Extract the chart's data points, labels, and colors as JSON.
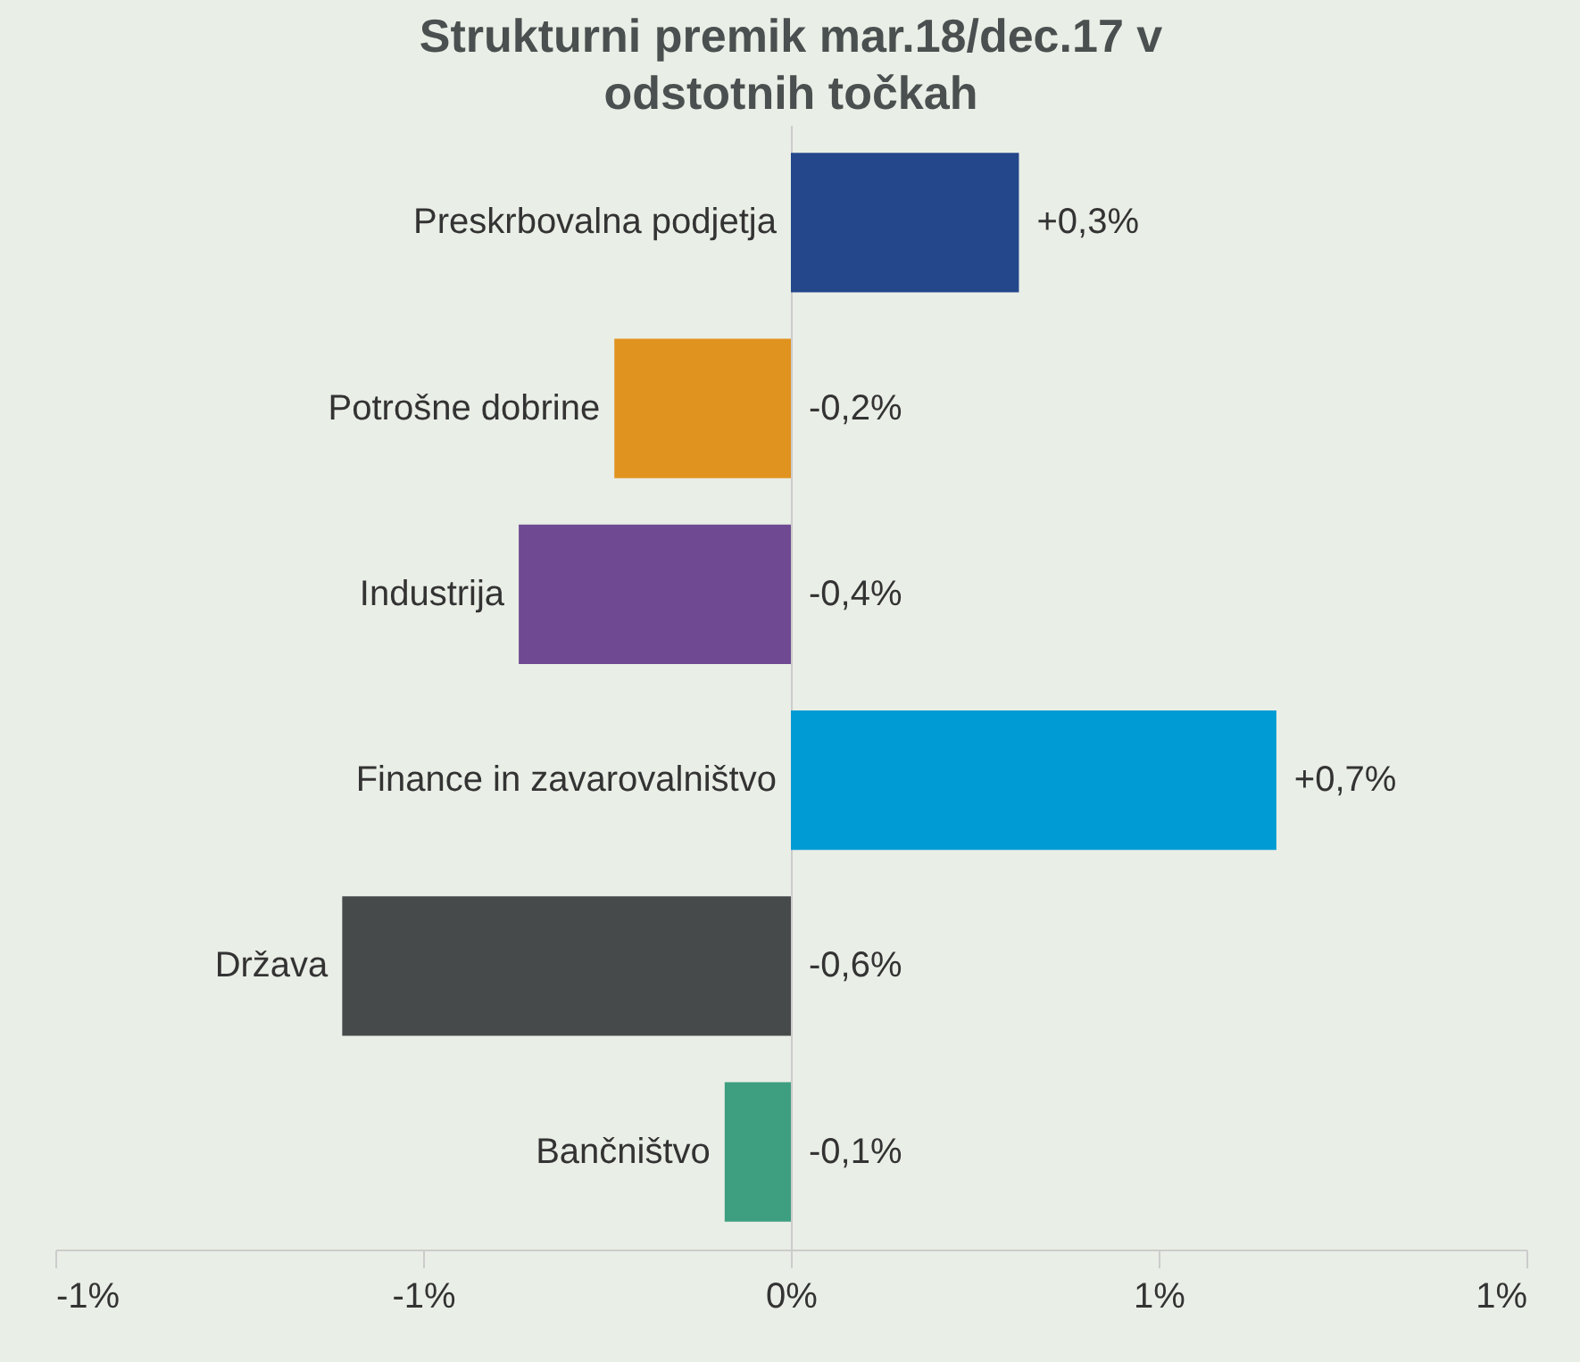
{
  "chart_data": {
    "type": "bar",
    "orientation": "horizontal",
    "title": "Strukturni premik mar.18/dec.17 v odstotnih točkah",
    "categories": [
      "Preskrbovalna podjetja",
      "Potrošne dobrine",
      "Industrija",
      "Finance in zavarovalništvo",
      "Država",
      "Bančništvo"
    ],
    "values": [
      0.31,
      -0.24,
      -0.37,
      0.66,
      -0.61,
      -0.09
    ],
    "colors": [
      "#23478a",
      "#e0931e",
      "#6f4a93",
      "#009bd4",
      "#464a4a",
      "#3d9e80"
    ],
    "value_labels": [
      "+0,3%",
      "-0,2%",
      "-0,4%",
      "+0,7%",
      "-0,6%",
      "-0,1%"
    ],
    "xlim": [
      -1,
      1
    ],
    "xticks": [
      {
        "value": -1,
        "label": "-1%"
      },
      {
        "value": -0.5,
        "label": "-1%"
      },
      {
        "value": 0,
        "label": "0%"
      },
      {
        "value": 0.5,
        "label": "1%"
      },
      {
        "value": 1,
        "label": "1%"
      }
    ],
    "grid": false
  }
}
